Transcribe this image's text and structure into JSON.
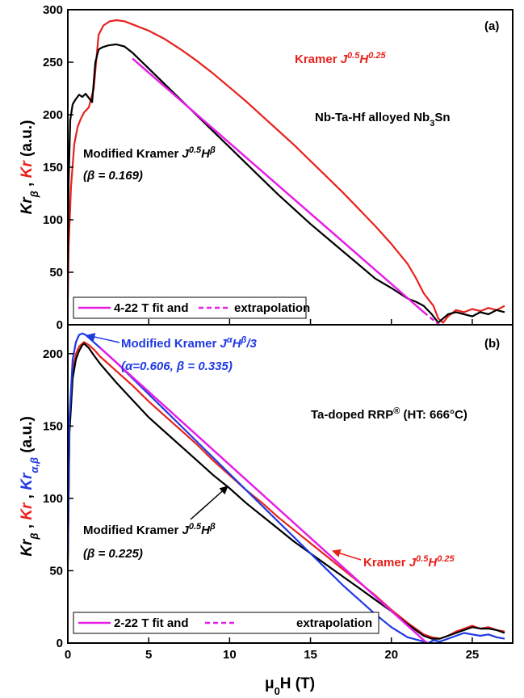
{
  "chart_data": [
    {
      "type": "line",
      "panel_label": "(a)",
      "sample_label": {
        "pre": "Nb-Ta-Hf alloyed Nb",
        "sub": "3",
        "post": "Sn"
      },
      "xlim": [
        0,
        27.5
      ],
      "ylim": [
        0,
        300
      ],
      "yticks": [
        0,
        50,
        100,
        150,
        200,
        250,
        300
      ],
      "ylabel": {
        "p1": "Kr",
        "s1": "β",
        "sep": " , ",
        "p2": "Kr",
        "unit": " (a.u.)"
      },
      "series": [
        {
          "name": "Kramer J0.5H0.25",
          "color": "#e8211d",
          "x": [
            0,
            0.05,
            0.2,
            0.4,
            0.6,
            0.8,
            1.0,
            1.3,
            1.6,
            1.9,
            2.2,
            2.6,
            3.0,
            3.5,
            4.0,
            5,
            6,
            7,
            8,
            9,
            10,
            11,
            12,
            13,
            14,
            15,
            16,
            17,
            18,
            19,
            20,
            21,
            21.5,
            22,
            22.3,
            22.6,
            22.9,
            23.2,
            23.5,
            24,
            24.5,
            25,
            25.5,
            26,
            26.5,
            27
          ],
          "y": [
            25,
            75,
            132,
            172,
            188,
            196,
            202,
            207,
            225,
            276,
            285,
            289,
            290,
            289,
            286,
            280,
            272,
            262,
            251,
            239,
            226,
            213,
            199,
            185,
            171,
            156,
            141,
            126,
            110,
            94,
            77,
            58,
            45,
            30,
            24,
            18,
            6,
            2,
            8,
            14,
            12,
            15,
            13,
            16,
            14,
            18
          ]
        },
        {
          "name": "Modified Kramer J0.5Hβ (β = 0.169)",
          "color": "#000000",
          "x": [
            0,
            0.05,
            0.15,
            0.3,
            0.5,
            0.7,
            0.9,
            1.1,
            1.3,
            1.5,
            1.7,
            1.9,
            2.1,
            2.5,
            3.0,
            3.5,
            4.0,
            5,
            6,
            7,
            8,
            9,
            10,
            11,
            12,
            13,
            14,
            15,
            16,
            17,
            18,
            19,
            20,
            21,
            21.5,
            22,
            22.5,
            22.9,
            23.2,
            23.5,
            24,
            24.5,
            25,
            25.5,
            26,
            26.5,
            27
          ],
          "y": [
            50,
            135,
            195,
            210,
            215,
            219,
            217,
            220,
            216,
            212,
            250,
            262,
            264,
            266,
            267,
            265,
            259,
            244,
            229,
            214,
            199,
            184,
            169,
            154,
            139,
            124,
            110,
            96,
            83,
            70,
            57,
            44,
            35,
            25,
            22,
            18,
            10,
            2,
            6,
            10,
            12,
            10,
            8,
            12,
            10,
            14,
            12
          ]
        },
        {
          "name": "4-22 T fit",
          "color": "#e61ee6",
          "dashed": false,
          "x": [
            4,
            22
          ],
          "y": [
            253.5,
            12
          ]
        },
        {
          "name": "extrapolation",
          "color": "#e61ee6",
          "dashed": true,
          "x": [
            22,
            23
          ],
          "y": [
            12,
            -0.6
          ]
        }
      ],
      "annotations": {
        "kramer": {
          "pre": "Kramer ",
          "j": "J",
          "jsup": "0.5",
          "h": "H",
          "hsup": "0.25"
        },
        "modified": {
          "pre": "Modified Kramer ",
          "j": "J",
          "jsup": "0.5",
          "h": "H",
          "hsup": "β"
        },
        "beta": "(β = 0.169)"
      },
      "legend": {
        "fit": "4-22 T fit and",
        "extra": "extrapolation",
        "placement": "bottom-left"
      }
    },
    {
      "type": "line",
      "panel_label": "(b)",
      "sample_label": {
        "pre": "Ta-doped RRP",
        "sup": "®",
        "post": " (HT: 666°C)"
      },
      "xlim": [
        0,
        27.5
      ],
      "ylim": [
        0,
        220
      ],
      "yticks": [
        0,
        50,
        100,
        150,
        200
      ],
      "xticks": [
        0,
        5,
        10,
        15,
        20,
        25
      ],
      "xlabel": {
        "mu": "μ",
        "sub": "0",
        "rest": "H (T)"
      },
      "ylabel": {
        "p1": "Kr",
        "s1": "β",
        "sep": " , ",
        "p2": "Kr",
        "sep2": " , ",
        "p3": "Kr",
        "s3": "α,β",
        "unit": " (a.u.)"
      },
      "series": [
        {
          "name": "Kramer J0.5H0.25",
          "color": "#e8211d",
          "x": [
            0,
            0.1,
            0.3,
            0.5,
            0.7,
            0.9,
            1.0,
            1.3,
            1.6,
            2,
            3,
            4,
            5,
            6,
            7,
            8,
            9,
            10,
            11,
            12,
            13,
            14,
            15,
            16,
            17,
            18,
            19,
            20,
            21,
            22,
            22.5,
            23,
            23.5,
            24,
            24.5,
            25,
            25.5,
            26,
            26.5,
            27
          ],
          "y": [
            60,
            150,
            188,
            200,
            205,
            207,
            208,
            206,
            203,
            198,
            188,
            178,
            167,
            157,
            147,
            137,
            126,
            116,
            106,
            97,
            87,
            78,
            69,
            60,
            51,
            42,
            33,
            23,
            14,
            6,
            4,
            3,
            5,
            8,
            10,
            12,
            10,
            11,
            9,
            8
          ]
        },
        {
          "name": "Modified Kramer J0.5Hβ (β = 0.225)",
          "color": "#000000",
          "x": [
            0,
            0.1,
            0.3,
            0.5,
            0.7,
            0.9,
            1.0,
            1.3,
            1.6,
            2,
            3,
            4,
            5,
            6,
            7,
            8,
            9,
            10,
            11,
            12,
            13,
            14,
            15,
            16,
            17,
            18,
            19,
            20,
            21,
            22,
            22.5,
            23,
            23.5,
            24,
            24.5,
            25,
            25.5,
            26,
            26.5,
            27
          ],
          "y": [
            55,
            145,
            183,
            196,
            202,
            206,
            207,
            204,
            199,
            193,
            180,
            168,
            156,
            146,
            136,
            126,
            116,
            107,
            97,
            88,
            79,
            70,
            62,
            54,
            46,
            38,
            30,
            22,
            13,
            5,
            3,
            3,
            5,
            7,
            9,
            11,
            10,
            10,
            9,
            7
          ]
        },
        {
          "name": "Modified Kramer JαHβ/3 (α=0.606, β = 0.335)",
          "color": "#1f39e3",
          "x": [
            0,
            0.1,
            0.3,
            0.5,
            0.7,
            0.9,
            1.1,
            1.4,
            1.8,
            2.2,
            3,
            4,
            5,
            6,
            7,
            8,
            9,
            10,
            11,
            12,
            13,
            14,
            15,
            16,
            17,
            18,
            19,
            20,
            21,
            22,
            22.3,
            22.6,
            23,
            23.5,
            24,
            24.5,
            25,
            25.5,
            26,
            26.5,
            27
          ],
          "y": [
            58,
            155,
            196,
            208,
            213,
            214,
            213,
            210,
            206,
            202,
            194,
            183,
            172,
            161,
            150,
            139,
            128,
            117,
            106,
            95,
            84,
            73,
            62,
            51,
            40,
            30,
            20,
            11,
            4,
            1,
            0,
            2,
            1,
            3,
            5,
            7,
            6,
            5,
            6,
            4,
            3
          ]
        },
        {
          "name": "2-22 T fit",
          "color": "#e61ee6",
          "dashed": false,
          "x": [
            2,
            22
          ],
          "y": [
            204,
            2
          ]
        },
        {
          "name": "extrapolation",
          "color": "#e61ee6",
          "dashed": true,
          "x": [
            22,
            22.3
          ],
          "y": [
            2,
            -1
          ]
        }
      ],
      "annotations": {
        "modified_blue": {
          "pre": "Modified Kramer ",
          "j": "J",
          "jsup": "α",
          "h": "H",
          "hsup": "β",
          "post": "/3"
        },
        "params_blue": "(α=0.606, β = 0.335)",
        "modified_black": {
          "pre": "Modified Kramer ",
          "j": "J",
          "jsup": "0.5",
          "h": "H",
          "hsup": "β"
        },
        "beta_black": "(β = 0.225)",
        "kramer": {
          "pre": "Kramer ",
          "j": "J",
          "jsup": "0.5",
          "h": "H",
          "hsup": "0.25"
        }
      },
      "legend": {
        "fit": "2-22 T fit and",
        "extra": "extrapolation",
        "placement": "bottom-left"
      }
    }
  ]
}
